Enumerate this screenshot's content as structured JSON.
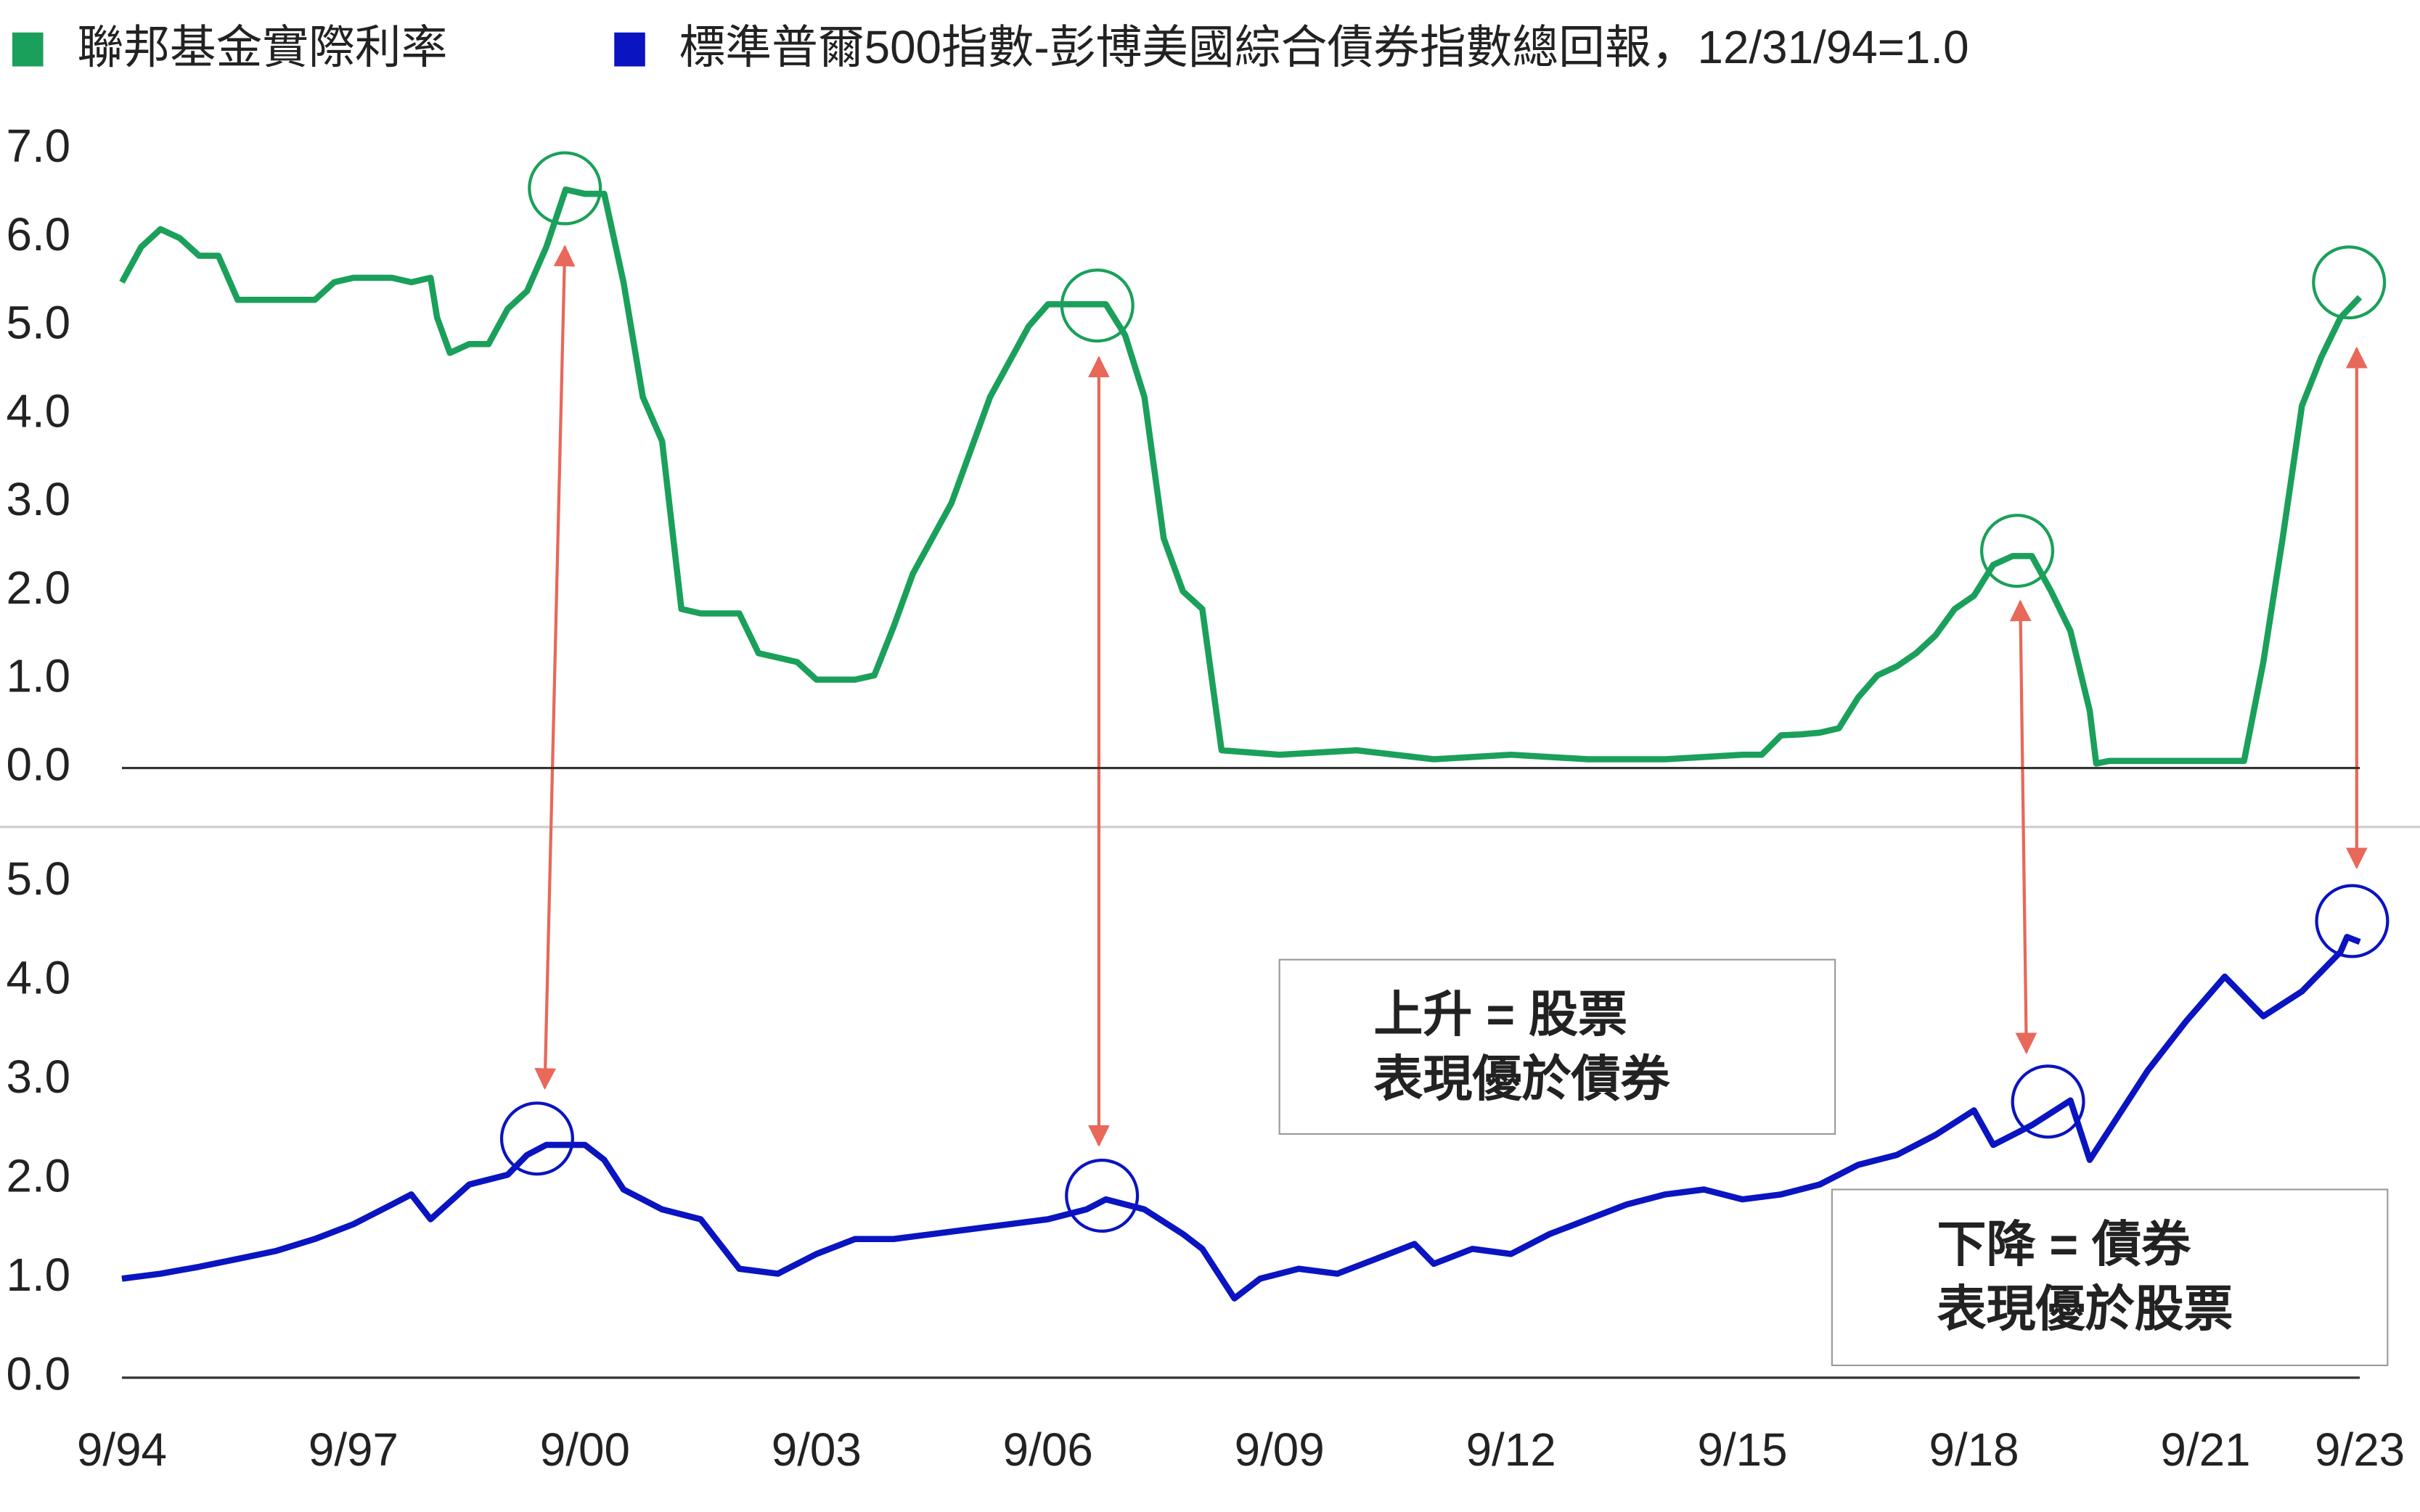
{
  "chart_data": [
    {
      "type": "line",
      "ylim": [
        -0.65,
        7.0
      ],
      "yticks": [
        {
          "value": 0,
          "label": "0.0"
        },
        {
          "value": 1,
          "label": "1.0"
        },
        {
          "value": 2,
          "label": "2.0"
        },
        {
          "value": 3,
          "label": "3.0"
        },
        {
          "value": 4,
          "label": "4.0"
        },
        {
          "value": 5,
          "label": "5.0"
        },
        {
          "value": 6,
          "label": "6.0"
        },
        {
          "value": 7,
          "label": "7.0"
        }
      ],
      "xlim": [
        "9/94",
        "9/23"
      ],
      "series": [
        {
          "name": "聯邦基金實際利率",
          "color": "#1aa05a",
          "x": [
            "9/94",
            "12/94",
            "3/95",
            "6/95",
            "9/95",
            "12/95",
            "3/96",
            "6/96",
            "9/96",
            "12/96",
            "3/97",
            "6/97",
            "9/97",
            "12/97",
            "3/98",
            "6/98",
            "9/98",
            "10/98",
            "12/98",
            "3/99",
            "6/99",
            "9/99",
            "12/99",
            "3/00",
            "6/00",
            "9/00",
            "12/00",
            "3/01",
            "6/01",
            "9/01",
            "12/01",
            "3/02",
            "6/02",
            "9/02",
            "12/02",
            "3/03",
            "6/03",
            "9/03",
            "12/03",
            "3/04",
            "6/04",
            "9/04",
            "12/04",
            "3/05",
            "6/05",
            "9/05",
            "12/05",
            "3/06",
            "6/06",
            "9/06",
            "12/06",
            "3/07",
            "6/07",
            "9/07",
            "12/07",
            "3/08",
            "6/08",
            "9/08",
            "12/08",
            "9/09",
            "9/10",
            "9/11",
            "9/12",
            "9/13",
            "9/14",
            "9/15",
            "12/15",
            "3/16",
            "6/16",
            "9/16",
            "12/16",
            "3/17",
            "6/17",
            "9/17",
            "12/17",
            "3/18",
            "6/18",
            "9/18",
            "12/18",
            "3/19",
            "6/19",
            "9/19",
            "12/19",
            "3/20",
            "4/20",
            "6/20",
            "6/21",
            "3/22",
            "6/22",
            "9/22",
            "12/22",
            "3/23",
            "6/23",
            "9/23"
          ],
          "values": [
            5.5,
            5.9,
            6.1,
            6.0,
            5.8,
            5.8,
            5.3,
            5.3,
            5.3,
            5.3,
            5.3,
            5.5,
            5.55,
            5.55,
            5.55,
            5.5,
            5.55,
            5.1,
            4.7,
            4.8,
            4.8,
            5.2,
            5.4,
            5.9,
            6.55,
            6.5,
            6.5,
            5.5,
            4.2,
            3.7,
            1.8,
            1.75,
            1.75,
            1.75,
            1.3,
            1.25,
            1.2,
            1.0,
            1.0,
            1.0,
            1.05,
            1.6,
            2.2,
            2.6,
            3.0,
            3.6,
            4.2,
            4.6,
            5.0,
            5.25,
            5.25,
            5.25,
            5.25,
            4.9,
            4.2,
            2.6,
            2.0,
            1.8,
            0.2,
            0.15,
            0.2,
            0.1,
            0.15,
            0.1,
            0.1,
            0.15,
            0.15,
            0.37,
            0.38,
            0.4,
            0.45,
            0.8,
            1.05,
            1.15,
            1.3,
            1.5,
            1.8,
            1.95,
            2.3,
            2.4,
            2.4,
            2.0,
            1.55,
            0.65,
            0.05,
            0.08,
            0.08,
            0.08,
            1.2,
            2.6,
            4.1,
            4.65,
            5.1,
            5.33
          ]
        }
      ]
    },
    {
      "type": "line",
      "ylim": [
        0,
        5.6
      ],
      "yticks": [
        {
          "value": 0,
          "label": "0.0"
        },
        {
          "value": 1,
          "label": "1.0"
        },
        {
          "value": 2,
          "label": "2.0"
        },
        {
          "value": 3,
          "label": "3.0"
        },
        {
          "value": 4,
          "label": "4.0"
        },
        {
          "value": 5,
          "label": "5.0"
        }
      ],
      "xlim": [
        "9/94",
        "9/23"
      ],
      "xticks": [
        "9/94",
        "9/97",
        "9/00",
        "9/03",
        "9/06",
        "9/09",
        "9/12",
        "9/15",
        "9/18",
        "9/21",
        "9/23"
      ],
      "series": [
        {
          "name": "標準普爾500指數-彭博美國綜合債券指數總回報，12/31/94=1.0",
          "color": "#0a14c0",
          "x": [
            "9/94",
            "3/95",
            "9/95",
            "3/96",
            "9/96",
            "3/97",
            "9/97",
            "3/98",
            "6/98",
            "9/98",
            "3/99",
            "9/99",
            "12/99",
            "3/00",
            "9/00",
            "12/00",
            "3/01",
            "9/01",
            "3/02",
            "9/02",
            "3/03",
            "9/03",
            "3/04",
            "9/04",
            "3/05",
            "9/05",
            "3/06",
            "9/06",
            "3/07",
            "6/07",
            "12/07",
            "6/08",
            "9/08",
            "2/09",
            "6/09",
            "12/09",
            "6/10",
            "12/10",
            "6/11",
            "9/11",
            "3/12",
            "9/12",
            "3/13",
            "9/13",
            "3/14",
            "9/14",
            "3/15",
            "9/15",
            "3/16",
            "9/16",
            "3/17",
            "9/17",
            "3/18",
            "9/18",
            "12/18",
            "6/19",
            "12/19",
            "3/20",
            "9/20",
            "12/20",
            "6/21",
            "12/21",
            "6/22",
            "12/22",
            "6/23",
            "7/23",
            "9/23"
          ],
          "values": [
            1.0,
            1.05,
            1.12,
            1.2,
            1.28,
            1.4,
            1.55,
            1.75,
            1.85,
            1.6,
            1.95,
            2.05,
            2.25,
            2.35,
            2.35,
            2.2,
            1.9,
            1.7,
            1.6,
            1.1,
            1.05,
            1.25,
            1.4,
            1.4,
            1.45,
            1.5,
            1.55,
            1.6,
            1.7,
            1.8,
            1.7,
            1.45,
            1.3,
            0.8,
            1.0,
            1.1,
            1.05,
            1.2,
            1.35,
            1.15,
            1.3,
            1.25,
            1.45,
            1.6,
            1.75,
            1.85,
            1.9,
            1.8,
            1.85,
            1.95,
            2.15,
            2.25,
            2.45,
            2.7,
            2.35,
            2.55,
            2.8,
            2.2,
            2.8,
            3.1,
            3.6,
            4.05,
            3.65,
            3.9,
            4.3,
            4.45,
            4.4
          ]
        }
      ],
      "annotations": [
        [
          "上升 = 股票",
          "表現優於債券"
        ],
        [
          "下降 = 債券",
          "表現優於股票"
        ]
      ]
    }
  ]
}
